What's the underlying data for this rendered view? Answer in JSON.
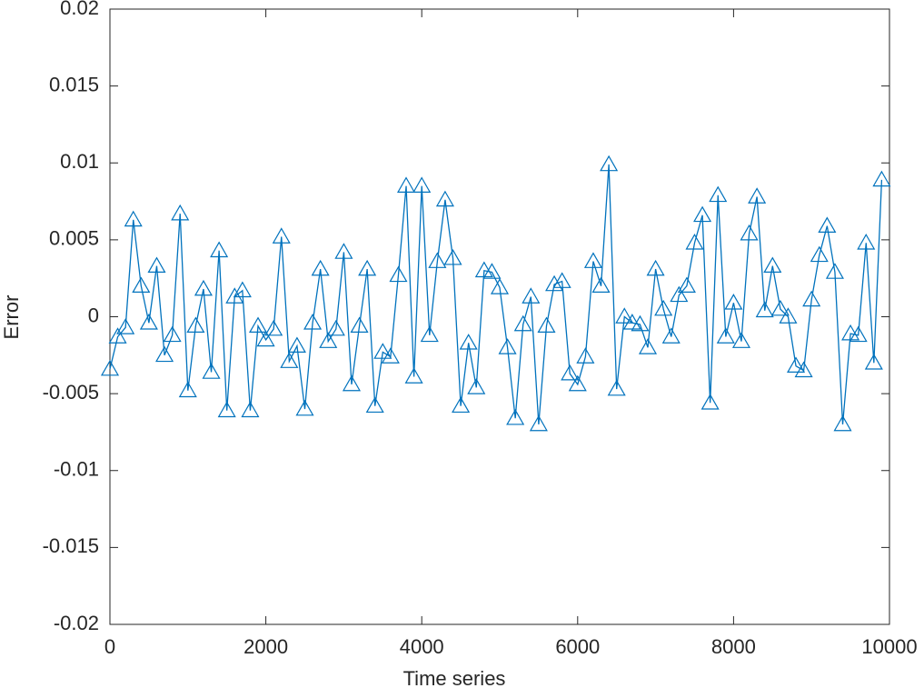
{
  "chart_data": {
    "type": "line",
    "xlabel": "Time series",
    "ylabel": "Error",
    "x": [
      0,
      100,
      200,
      300,
      400,
      500,
      600,
      700,
      800,
      900,
      1000,
      1100,
      1200,
      1300,
      1400,
      1500,
      1600,
      1700,
      1800,
      1900,
      2000,
      2100,
      2200,
      2300,
      2400,
      2500,
      2600,
      2700,
      2800,
      2900,
      3000,
      3100,
      3200,
      3300,
      3400,
      3500,
      3600,
      3700,
      3800,
      3900,
      4000,
      4100,
      4200,
      4300,
      4400,
      4500,
      4600,
      4700,
      4800,
      4900,
      5000,
      5100,
      5200,
      5300,
      5400,
      5500,
      5600,
      5700,
      5800,
      5900,
      6000,
      6100,
      6200,
      6300,
      6400,
      6500,
      6600,
      6700,
      6800,
      6900,
      7000,
      7100,
      7200,
      7300,
      7400,
      7500,
      7600,
      7700,
      7800,
      7900,
      8000,
      8100,
      8200,
      8300,
      8400,
      8500,
      8600,
      8700,
      8800,
      8900,
      9000,
      9100,
      9200,
      9300,
      9400,
      9500,
      9600,
      9700,
      9800,
      9900
    ],
    "series": [
      {
        "name": "Error",
        "color": "#0072bd",
        "marker": "triangle",
        "values": [
          -0.0034,
          -0.0013,
          -0.0007,
          0.0063,
          0.002,
          -0.0004,
          0.0033,
          -0.0025,
          -0.0012,
          0.0067,
          -0.0048,
          -0.0006,
          0.0018,
          -0.0036,
          0.0043,
          -0.0061,
          0.0013,
          0.0017,
          -0.0061,
          -0.0006,
          -0.0015,
          -0.0008,
          0.0052,
          -0.0029,
          -0.0019,
          -0.006,
          -0.0004,
          0.0031,
          -0.0016,
          -0.0008,
          0.0042,
          -0.0044,
          -0.0006,
          0.0031,
          -0.0058,
          -0.0023,
          -0.0026,
          0.0027,
          0.0085,
          -0.0039,
          0.0085,
          -0.0012,
          0.0036,
          0.0076,
          0.0038,
          -0.0058,
          -0.0017,
          -0.0046,
          0.003,
          0.0029,
          0.0019,
          -0.002,
          -0.0066,
          -0.0005,
          0.0013,
          -0.007,
          -0.0006,
          0.0021,
          0.0023,
          -0.0037,
          -0.0044,
          -0.0026,
          0.0036,
          0.002,
          0.0099,
          -0.0047,
          0,
          -0.0004,
          -0.0005,
          -0.002,
          0.0031,
          0.0005,
          -0.0013,
          0.0014,
          0.002,
          0.0048,
          0.0066,
          -0.0056,
          0.0079,
          -0.0013,
          0.0009,
          -0.0016,
          0.0054,
          0.0078,
          0.0004,
          0.0033,
          0.0005,
          0,
          -0.0032,
          -0.0035,
          0.0011,
          0.004,
          0.0059,
          0.0029,
          -0.007,
          -0.0011,
          -0.0012,
          0.0048,
          -0.003,
          0.0089
        ]
      }
    ],
    "xlim": [
      0,
      10000
    ],
    "xticks": [
      0,
      2000,
      4000,
      6000,
      8000,
      10000
    ],
    "ylim": [
      -0.02,
      0.02
    ],
    "yticks": [
      -0.02,
      -0.015,
      -0.01,
      -0.005,
      0,
      0.005,
      0.01,
      0.015,
      0.02
    ],
    "grid": false
  }
}
